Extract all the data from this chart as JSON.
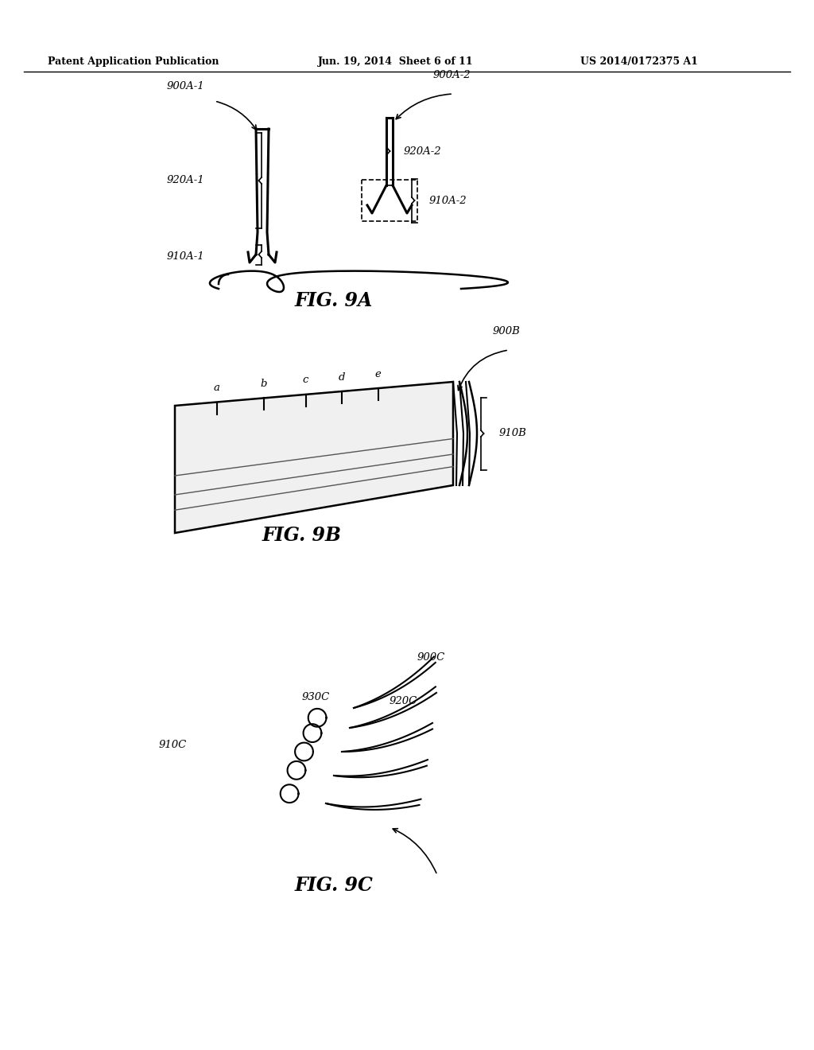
{
  "header_left": "Patent Application Publication",
  "header_mid": "Jun. 19, 2014  Sheet 6 of 11",
  "header_right": "US 2014/0172375 A1",
  "fig9a_label": "FIG. 9A",
  "fig9b_label": "FIG. 9B",
  "fig9c_label": "FIG. 9C",
  "labels_9a": [
    "900A-1",
    "920A-1",
    "910A-1",
    "900A-2",
    "920A-2",
    "910A-2"
  ],
  "labels_9b": [
    "900B",
    "910B",
    "a",
    "b",
    "c",
    "d",
    "e"
  ],
  "labels_9c": [
    "900C",
    "910C",
    "920C",
    "930C"
  ],
  "bg_color": "#ffffff",
  "line_color": "#000000",
  "gray_color": "#888888",
  "light_gray": "#cccccc"
}
